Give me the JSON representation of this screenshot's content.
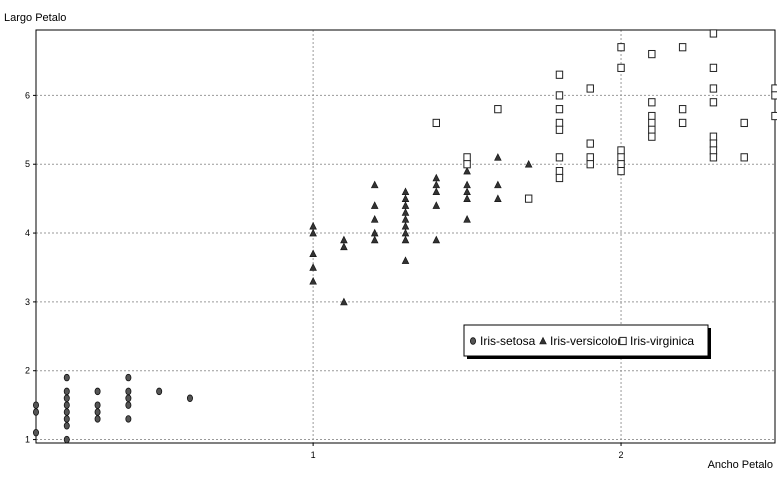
{
  "chart_data": {
    "type": "scatter",
    "title": "",
    "xlabel": "Ancho Petalo",
    "ylabel": "Largo Petalo",
    "xlim": [
      0.1,
      2.5
    ],
    "ylim": [
      0.95,
      6.95
    ],
    "x_ticks": [
      1,
      2
    ],
    "y_ticks": [
      1,
      2,
      3,
      4,
      5,
      6
    ],
    "grid": true,
    "legend_position": "lower-right",
    "series": [
      {
        "name": "Iris-setosa",
        "marker": "circle",
        "color": "#333333",
        "points": [
          [
            0.1,
            1.4
          ],
          [
            0.1,
            1.5
          ],
          [
            0.1,
            1.1
          ],
          [
            0.2,
            1.9
          ],
          [
            0.2,
            1.7
          ],
          [
            0.2,
            1.6
          ],
          [
            0.2,
            1.5
          ],
          [
            0.2,
            1.4
          ],
          [
            0.2,
            1.3
          ],
          [
            0.2,
            1.2
          ],
          [
            0.2,
            1.0
          ],
          [
            0.3,
            1.7
          ],
          [
            0.3,
            1.5
          ],
          [
            0.3,
            1.4
          ],
          [
            0.3,
            1.3
          ],
          [
            0.4,
            1.9
          ],
          [
            0.4,
            1.7
          ],
          [
            0.4,
            1.6
          ],
          [
            0.4,
            1.5
          ],
          [
            0.4,
            1.3
          ],
          [
            0.5,
            1.7
          ],
          [
            0.6,
            1.6
          ]
        ]
      },
      {
        "name": "Iris-versicolor",
        "marker": "triangle",
        "color": "#333333",
        "points": [
          [
            1.0,
            4.1
          ],
          [
            1.0,
            4.0
          ],
          [
            1.0,
            3.7
          ],
          [
            1.0,
            3.5
          ],
          [
            1.0,
            3.3
          ],
          [
            1.1,
            3.9
          ],
          [
            1.1,
            3.8
          ],
          [
            1.1,
            3.0
          ],
          [
            1.2,
            4.7
          ],
          [
            1.2,
            4.4
          ],
          [
            1.2,
            4.2
          ],
          [
            1.2,
            4.0
          ],
          [
            1.2,
            3.9
          ],
          [
            1.3,
            4.6
          ],
          [
            1.3,
            4.5
          ],
          [
            1.3,
            4.4
          ],
          [
            1.3,
            4.3
          ],
          [
            1.3,
            4.2
          ],
          [
            1.3,
            4.1
          ],
          [
            1.3,
            4.0
          ],
          [
            1.3,
            3.9
          ],
          [
            1.3,
            3.6
          ],
          [
            1.4,
            4.8
          ],
          [
            1.4,
            4.7
          ],
          [
            1.4,
            4.6
          ],
          [
            1.4,
            4.4
          ],
          [
            1.4,
            3.9
          ],
          [
            1.5,
            4.9
          ],
          [
            1.5,
            4.7
          ],
          [
            1.5,
            4.6
          ],
          [
            1.5,
            4.5
          ],
          [
            1.5,
            4.2
          ],
          [
            1.6,
            5.1
          ],
          [
            1.6,
            4.7
          ],
          [
            1.6,
            4.5
          ],
          [
            1.7,
            5.0
          ]
        ]
      },
      {
        "name": "Iris-virginica",
        "marker": "square",
        "color": "#333333",
        "points": [
          [
            1.4,
            5.6
          ],
          [
            1.5,
            5.1
          ],
          [
            1.5,
            5.0
          ],
          [
            1.6,
            5.8
          ],
          [
            1.7,
            4.5
          ],
          [
            1.8,
            6.3
          ],
          [
            1.8,
            6.0
          ],
          [
            1.8,
            5.8
          ],
          [
            1.8,
            5.6
          ],
          [
            1.8,
            5.5
          ],
          [
            1.8,
            5.1
          ],
          [
            1.8,
            4.9
          ],
          [
            1.8,
            4.8
          ],
          [
            1.9,
            6.1
          ],
          [
            1.9,
            5.3
          ],
          [
            1.9,
            5.1
          ],
          [
            1.9,
            5.0
          ],
          [
            2.0,
            6.7
          ],
          [
            2.0,
            6.4
          ],
          [
            2.0,
            5.2
          ],
          [
            2.0,
            5.1
          ],
          [
            2.0,
            5.0
          ],
          [
            2.0,
            4.9
          ],
          [
            2.1,
            6.6
          ],
          [
            2.1,
            5.9
          ],
          [
            2.1,
            5.7
          ],
          [
            2.1,
            5.6
          ],
          [
            2.1,
            5.5
          ],
          [
            2.1,
            5.4
          ],
          [
            2.2,
            6.7
          ],
          [
            2.2,
            5.8
          ],
          [
            2.2,
            5.6
          ],
          [
            2.3,
            6.9
          ],
          [
            2.3,
            6.4
          ],
          [
            2.3,
            6.1
          ],
          [
            2.3,
            5.9
          ],
          [
            2.3,
            5.4
          ],
          [
            2.3,
            5.3
          ],
          [
            2.3,
            5.2
          ],
          [
            2.3,
            5.1
          ],
          [
            2.4,
            5.6
          ],
          [
            2.4,
            5.1
          ],
          [
            2.5,
            6.1
          ],
          [
            2.5,
            6.0
          ],
          [
            2.5,
            5.7
          ]
        ]
      }
    ]
  }
}
